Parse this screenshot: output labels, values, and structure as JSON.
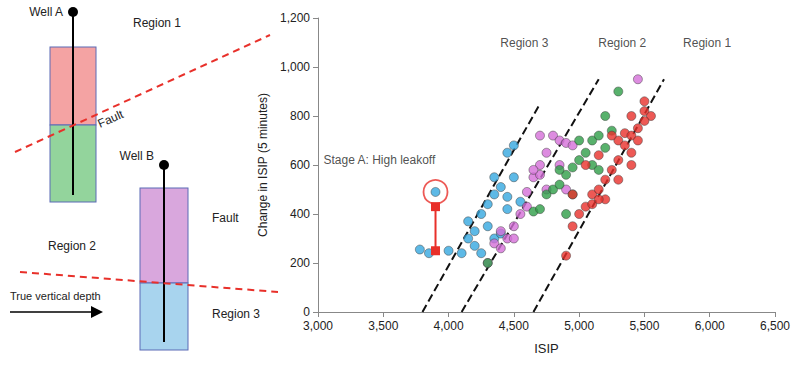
{
  "diagram": {
    "well_a": {
      "label": "Well A",
      "colors": [
        "#f4a3a3",
        "#93d49c"
      ]
    },
    "well_b": {
      "label": "Well B",
      "colors": [
        "#d9a7dd",
        "#a8d4ee"
      ]
    },
    "regions": [
      "Region 1",
      "Region 2",
      "Region 3"
    ],
    "fault_label": "Fault",
    "fault_color": "#e8302a",
    "depth_label": "True vertical depth"
  },
  "chart_data": {
    "type": "scatter",
    "x_label": "ISIP",
    "y_label": "Change in ISIP (5 minutes)",
    "xlim": [
      3000,
      6500
    ],
    "xticks": [
      {
        "value": 3000,
        "label": "3,000"
      },
      {
        "value": 3500,
        "label": "3,500"
      },
      {
        "value": 4000,
        "label": "4,000"
      },
      {
        "value": 4500,
        "label": "4,500"
      },
      {
        "value": 5000,
        "label": "5,000"
      },
      {
        "value": 5500,
        "label": "5,500"
      },
      {
        "value": 6000,
        "label": "6,000"
      },
      {
        "value": 6500,
        "label": "6,500"
      }
    ],
    "ylim": [
      0,
      1200
    ],
    "yticks": [
      0,
      200,
      400,
      600,
      800,
      {
        "value": 1000,
        "label": "1,000"
      },
      {
        "value": 1200,
        "label": "1,200"
      }
    ],
    "grid": false,
    "series": [
      {
        "color": "#35a7e0",
        "marker": "circle",
        "x": [
          3780,
          3850,
          3900,
          4000,
          4100,
          4150,
          4150,
          4200,
          4250,
          4300,
          4350,
          4350,
          4400,
          4450,
          4450,
          4500,
          4400,
          4300,
          4200,
          4500,
          4450,
          4550,
          4350,
          4250
        ],
        "values": [
          255,
          240,
          490,
          250,
          240,
          300,
          370,
          330,
          400,
          440,
          300,
          550,
          510,
          650,
          420,
          680,
          320,
          350,
          270,
          550,
          470,
          450,
          480,
          240
        ]
      },
      {
        "color": "#d46fd8",
        "marker": "circle",
        "x": [
          4300,
          4350,
          4400,
          4450,
          4500,
          4550,
          4600,
          4650,
          4700,
          4750,
          4800,
          4850,
          4750,
          4700,
          4650,
          4900,
          4950,
          4600,
          4850,
          4500,
          4400,
          5450,
          4900,
          4700
        ],
        "values": [
          200,
          280,
          330,
          300,
          350,
          400,
          490,
          550,
          600,
          650,
          720,
          700,
          500,
          560,
          580,
          690,
          680,
          430,
          600,
          300,
          260,
          950,
          500,
          720
        ]
      },
      {
        "color": "#2e9e47",
        "marker": "circle",
        "x": [
          4300,
          4650,
          4700,
          4750,
          4800,
          4850,
          4900,
          4950,
          5000,
          5050,
          5100,
          5150,
          5200,
          5250,
          5300,
          4950,
          5000,
          4850,
          5100,
          5150,
          4900,
          5200
        ],
        "values": [
          200,
          410,
          420,
          480,
          500,
          520,
          560,
          590,
          620,
          650,
          700,
          720,
          670,
          740,
          900,
          480,
          700,
          580,
          600,
          580,
          400,
          800
        ]
      },
      {
        "color": "#e8302a",
        "marker": "circle",
        "x": [
          4900,
          4950,
          5000,
          5050,
          5100,
          5100,
          5150,
          5200,
          5200,
          5250,
          5300,
          5300,
          5350,
          5350,
          5400,
          5400,
          5450,
          5500,
          5550,
          5500,
          5450,
          5300,
          5150,
          5050,
          4950,
          5250,
          5400,
          5150,
          5400,
          5500
        ],
        "values": [
          230,
          350,
          400,
          430,
          440,
          480,
          500,
          460,
          540,
          580,
          620,
          700,
          680,
          730,
          720,
          800,
          750,
          820,
          800,
          860,
          700,
          540,
          640,
          600,
          480,
          720,
          650,
          460,
          600,
          780
        ]
      }
    ],
    "trend_lines": [
      {
        "label": "Region 3",
        "x": [
          3800,
          4700
        ],
        "values": [
          0,
          850
        ],
        "label_x": 4580,
        "label_y": 1100,
        "line_style": "dashed",
        "color": "#111111"
      },
      {
        "label": "Region 2",
        "x": [
          4100,
          5150
        ],
        "values": [
          0,
          950
        ],
        "label_x": 5330,
        "label_y": 1100,
        "line_style": "dashed",
        "color": "#111111"
      },
      {
        "label": "Region 1",
        "x": [
          4650,
          5650
        ],
        "values": [
          0,
          950
        ],
        "label_x": 5980,
        "label_y": 1100,
        "line_style": "dashed",
        "color": "#111111"
      }
    ],
    "annotations": [
      {
        "text": "Stage A: High leakoff",
        "x": 3470,
        "y": 620,
        "point": [
          3900,
          490
        ],
        "arrow_from": [
          3900,
          250
        ],
        "arrow_to": [
          3900,
          430
        ],
        "color": "#e8302a"
      }
    ]
  }
}
